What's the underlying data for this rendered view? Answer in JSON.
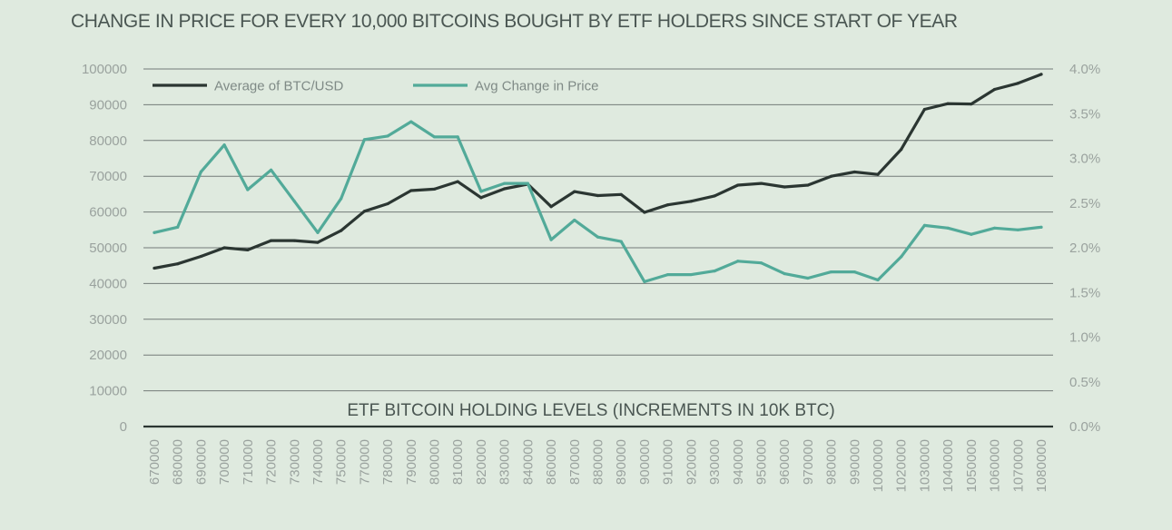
{
  "title": "CHANGE IN PRICE FOR EVERY 10,000 BITCOINS BOUGHT BY ETF HOLDERS SINCE START OF YEAR",
  "colors": {
    "background": "#dfeadf",
    "series_btc": "#2b3632",
    "series_change": "#52aa99",
    "grid": "#737b78",
    "axis": "#2b3632"
  },
  "chart_data": {
    "type": "line",
    "title": "CHANGE IN PRICE FOR EVERY 10,000 BITCOINS BOUGHT BY ETF HOLDERS SINCE START OF YEAR",
    "xlabel": "ETF BITCOIN HOLDING LEVELS (INCREMENTS IN 10K BTC)",
    "ylabel": "",
    "y2label": "",
    "categories": [
      "670000",
      "680000",
      "690000",
      "700000",
      "710000",
      "720000",
      "730000",
      "740000",
      "750000",
      "770000",
      "780000",
      "790000",
      "800000",
      "810000",
      "820000",
      "830000",
      "840000",
      "860000",
      "870000",
      "880000",
      "890000",
      "900000",
      "910000",
      "920000",
      "930000",
      "940000",
      "950000",
      "960000",
      "970000",
      "980000",
      "990000",
      "1000000",
      "1020000",
      "1030000",
      "1040000",
      "1050000",
      "1060000",
      "1070000",
      "1080000"
    ],
    "ylim": [
      0,
      100000
    ],
    "y2lim": [
      0.0,
      4.0
    ],
    "yticks": [
      "0",
      "10000",
      "20000",
      "30000",
      "40000",
      "50000",
      "60000",
      "70000",
      "80000",
      "90000",
      "100000"
    ],
    "y2ticks": [
      "0.0%",
      "0.5%",
      "1.0%",
      "1.5%",
      "2.0%",
      "2.5%",
      "3.0%",
      "3.5%",
      "4.0%"
    ],
    "grid": true,
    "legend_position": "top-left",
    "series": [
      {
        "name": "Average of BTC/USD",
        "axis": "left",
        "color": "#2b3632",
        "values": [
          44300,
          45500,
          47600,
          50000,
          49400,
          52000,
          52000,
          51500,
          54800,
          60200,
          62300,
          66000,
          66400,
          68500,
          64000,
          66500,
          67800,
          61500,
          65700,
          64600,
          64900,
          59900,
          62000,
          63000,
          64500,
          67500,
          68000,
          67000,
          67500,
          70000,
          71200,
          70500,
          77500,
          88700,
          90300,
          90200,
          94300,
          96000,
          98500
        ]
      },
      {
        "name": "Avg Change in Price",
        "axis": "right",
        "color": "#52aa99",
        "values": [
          2.17,
          2.23,
          2.85,
          3.15,
          2.65,
          2.87,
          2.52,
          2.17,
          2.55,
          3.21,
          3.25,
          3.41,
          3.24,
          3.24,
          2.63,
          2.72,
          2.72,
          2.09,
          2.31,
          2.12,
          2.07,
          1.62,
          1.7,
          1.7,
          1.74,
          1.85,
          1.83,
          1.71,
          1.66,
          1.73,
          1.73,
          1.64,
          1.9,
          2.25,
          2.22,
          2.15,
          2.22,
          2.2,
          2.23
        ]
      }
    ]
  }
}
